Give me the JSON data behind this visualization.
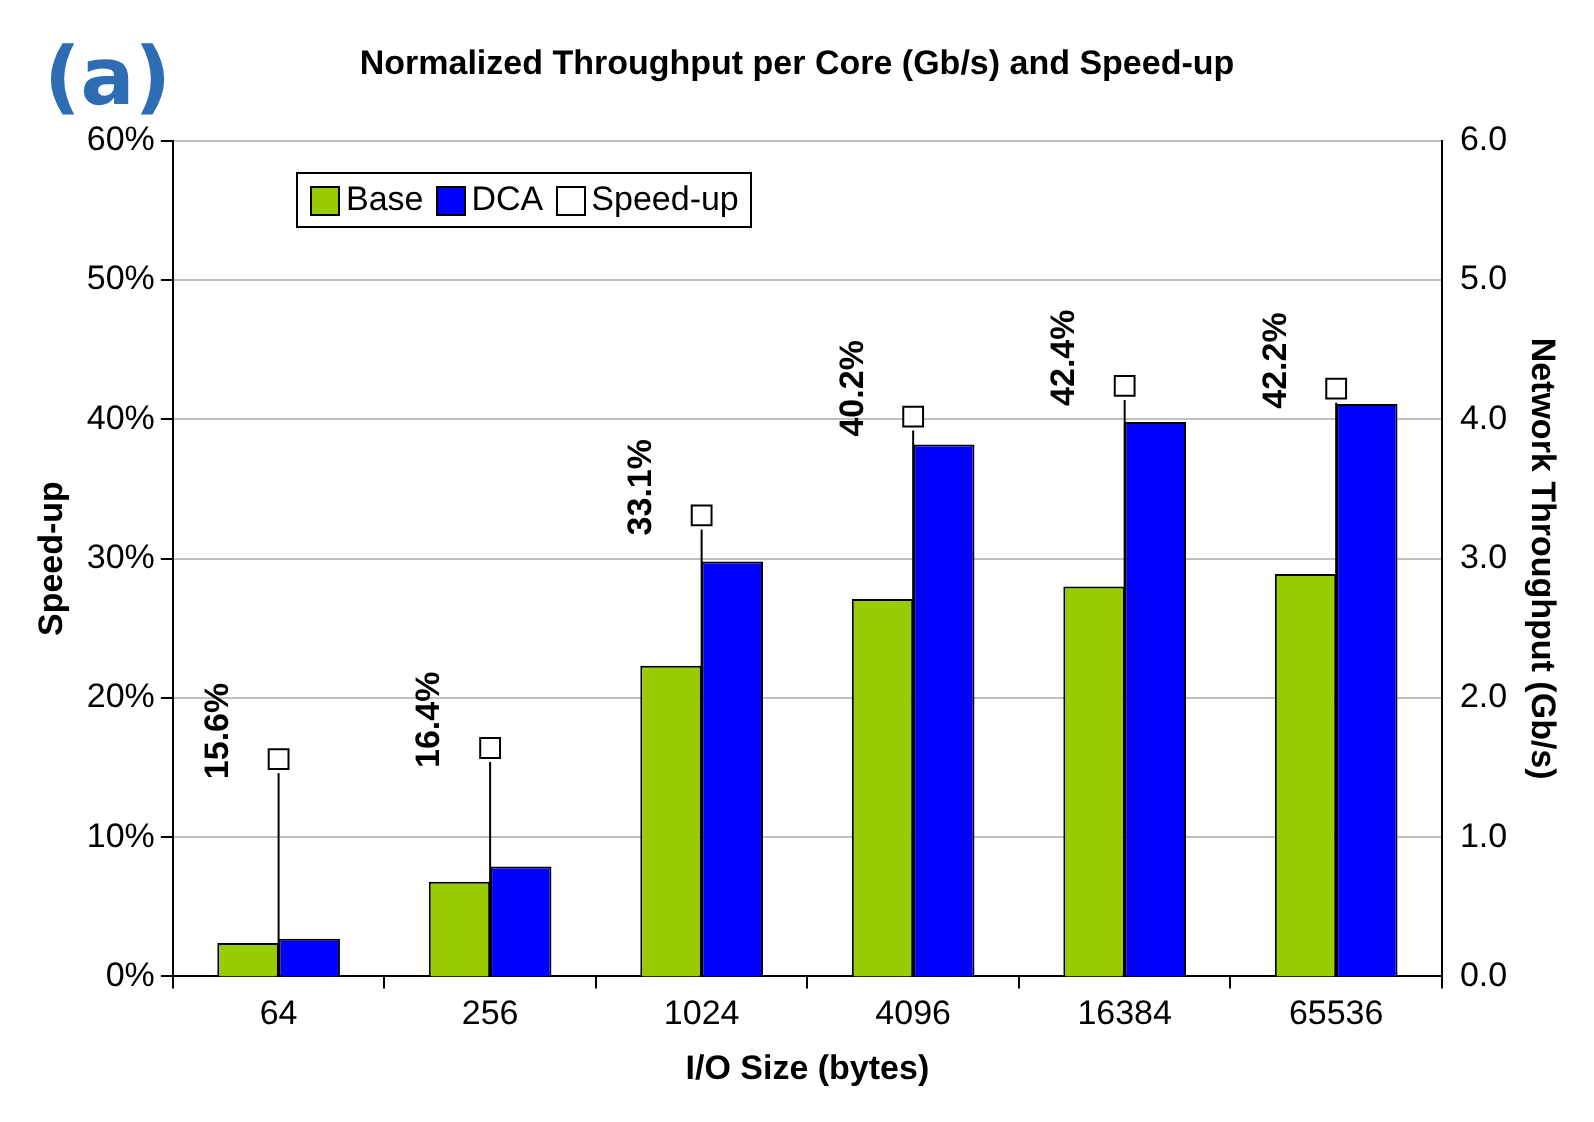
{
  "chart_data": {
    "type": "bar",
    "title": "Normalized Throughput per Core (Gb/s) and Speed-up",
    "xlabel": "I/O Size (bytes)",
    "ylabel": "Speed-up",
    "y2label": "Network Throughput (Gb/s)",
    "annotations": [
      "(a)"
    ],
    "categories": [
      "64",
      "256",
      "1024",
      "4096",
      "16384",
      "65536"
    ],
    "series": [
      {
        "name": "Base",
        "color": "#99cc00",
        "axis": "y2",
        "values": [
          0.24,
          0.68,
          2.23,
          2.71,
          2.8,
          2.89
        ]
      },
      {
        "name": "DCA",
        "color": "#0000ff",
        "axis": "y2",
        "values": [
          0.27,
          0.79,
          2.98,
          3.82,
          3.98,
          4.11
        ]
      },
      {
        "name": "Speed-up",
        "type": "scatter",
        "color": "#ffffff",
        "marker": "square",
        "axis": "y",
        "values": [
          15.6,
          16.4,
          33.1,
          40.2,
          42.4,
          42.2
        ],
        "value_labels": [
          "15.6%",
          "16.4%",
          "33.1%",
          "40.2%",
          "42.4%",
          "42.2%"
        ]
      }
    ],
    "ylim": [
      0,
      60
    ],
    "yticks": [
      {
        "value": 0,
        "label": "0%"
      },
      {
        "value": 10,
        "label": "10%"
      },
      {
        "value": 20,
        "label": "20%"
      },
      {
        "value": 30,
        "label": "30%"
      },
      {
        "value": 40,
        "label": "40%"
      },
      {
        "value": 50,
        "label": "50%"
      },
      {
        "value": 60,
        "label": "60%"
      }
    ],
    "y2lim": [
      0,
      6
    ],
    "y2ticks": [
      {
        "value": 0,
        "label": "0.0"
      },
      {
        "value": 1,
        "label": "1.0"
      },
      {
        "value": 2,
        "label": "2.0"
      },
      {
        "value": 3,
        "label": "3.0"
      },
      {
        "value": 4,
        "label": "4.0"
      },
      {
        "value": 5,
        "label": "5.0"
      },
      {
        "value": 6,
        "label": "6.0"
      }
    ],
    "grid": "y",
    "legend": "top left"
  }
}
